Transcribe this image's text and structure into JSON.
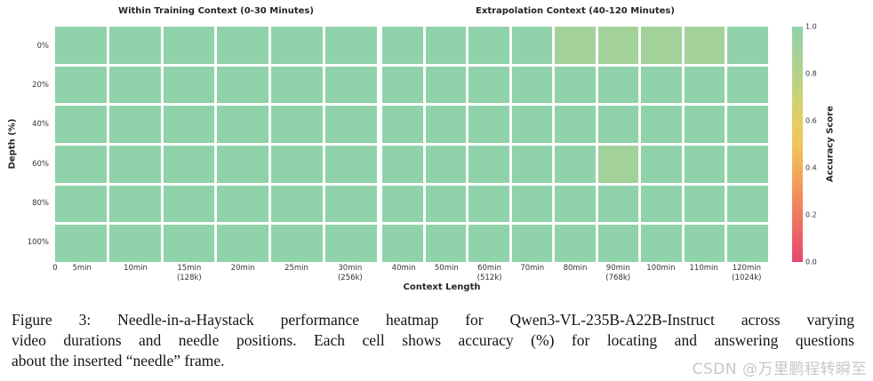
{
  "chart_data": {
    "type": "heatmap",
    "xlabel": "Context Length",
    "ylabel": "Depth (%)",
    "y_tick_labels": [
      "0%",
      "20%",
      "40%",
      "60%",
      "80%",
      "100%"
    ],
    "value_range": [
      0,
      1
    ],
    "grid": false,
    "cell_gap_color": "#ffffff",
    "panels": [
      {
        "title": "Within Training Context (0-30 Minutes)",
        "origin_label": "0",
        "columns": [
          "5min",
          "10min",
          "15min\n(128k)",
          "20min",
          "25min",
          "30min\n(256k)"
        ],
        "rows": [
          [
            1.0,
            1.0,
            1.0,
            1.0,
            1.0,
            1.0
          ],
          [
            1.0,
            1.0,
            1.0,
            1.0,
            1.0,
            1.0
          ],
          [
            1.0,
            1.0,
            1.0,
            1.0,
            1.0,
            1.0
          ],
          [
            1.0,
            1.0,
            1.0,
            1.0,
            1.0,
            1.0
          ],
          [
            1.0,
            1.0,
            1.0,
            1.0,
            1.0,
            1.0
          ],
          [
            1.0,
            1.0,
            1.0,
            1.0,
            1.0,
            1.0
          ]
        ]
      },
      {
        "title": "Extrapolation Context (40-120 Minutes)",
        "origin_label": "",
        "columns": [
          "40min",
          "50min",
          "60min\n(512k)",
          "70min",
          "80min",
          "90min\n(768k)",
          "100min",
          "110min",
          "120min\n(1024k)"
        ],
        "rows": [
          [
            1.0,
            1.0,
            1.0,
            1.0,
            0.9,
            0.9,
            0.9,
            0.9,
            1.0
          ],
          [
            1.0,
            1.0,
            1.0,
            1.0,
            1.0,
            1.0,
            1.0,
            1.0,
            1.0
          ],
          [
            1.0,
            1.0,
            1.0,
            1.0,
            1.0,
            1.0,
            1.0,
            1.0,
            1.0
          ],
          [
            1.0,
            1.0,
            1.0,
            1.0,
            1.0,
            0.9,
            1.0,
            1.0,
            1.0
          ],
          [
            1.0,
            1.0,
            1.0,
            1.0,
            1.0,
            1.0,
            1.0,
            1.0,
            1.0
          ],
          [
            1.0,
            1.0,
            1.0,
            1.0,
            1.0,
            1.0,
            1.0,
            1.0,
            1.0
          ]
        ]
      }
    ],
    "colorbar": {
      "label": "Accuracy Score",
      "tick_labels": [
        "1.0",
        "0.8",
        "0.6",
        "0.4",
        "0.2",
        "0.0"
      ],
      "tick_values": [
        1.0,
        0.8,
        0.6,
        0.4,
        0.2,
        0.0
      ],
      "min": 0.0,
      "max": 1.0
    },
    "colormap_stops": [
      [
        0.0,
        "#e8476e"
      ],
      [
        0.1,
        "#ec5f67"
      ],
      [
        0.2,
        "#ef7a60"
      ],
      [
        0.3,
        "#f2935b"
      ],
      [
        0.4,
        "#f1af58"
      ],
      [
        0.5,
        "#efc65d"
      ],
      [
        0.6,
        "#e5cd63"
      ],
      [
        0.7,
        "#ccd274"
      ],
      [
        0.8,
        "#b4d289"
      ],
      [
        0.9,
        "#a2d29a"
      ],
      [
        1.0,
        "#90d2a9"
      ]
    ],
    "colors": {
      "full_accuracy_green": "#93d3aa",
      "reduced_accuracy_green": "#a2d19d",
      "low_accuracy_red": "#e8476e"
    }
  },
  "caption": {
    "lines": [
      "Figure 3: Needle-in-a-Haystack performance heatmap for Qwen3-VL-235B-A22B-Instruct across varying",
      "video durations and needle positions. Each cell shows accuracy (%) for locating and answering questions",
      "about the inserted “needle” frame."
    ]
  },
  "watermark": {
    "text": "CSDN @万里鹏程转瞬至"
  }
}
